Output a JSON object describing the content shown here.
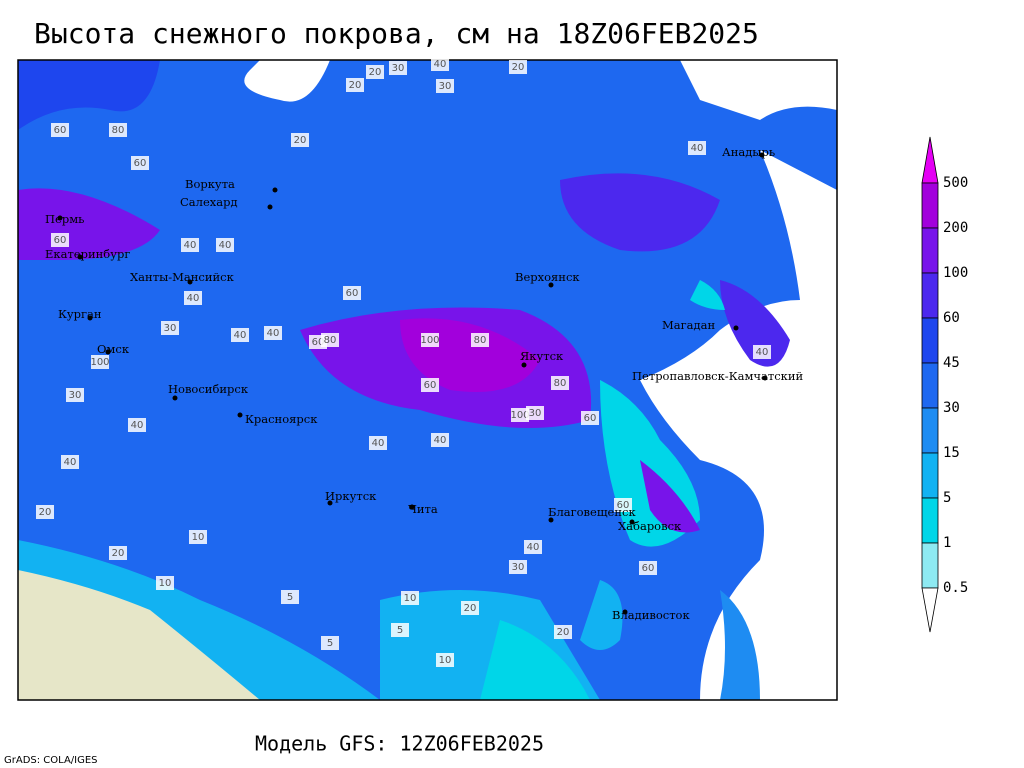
{
  "title": "Высота снежного покрова, см на 18Z06FEB2025",
  "footer": "Модель GFS: 12Z06FEB2025",
  "credit": "GrADS: COLA/IGES",
  "cities": [
    "Воркута",
    "Салехард",
    "Пермь",
    "Екатеринбург",
    "Ханты-Мансийск",
    "Курган",
    "Омск",
    "Новосибирск",
    "Красноярск",
    "Иркутск",
    "Чита",
    "Верхоянск",
    "Якутск",
    "Магадан",
    "Петропавловск-Камчатский",
    "Анадырь",
    "Благовещенск",
    "Хабаровск",
    "Владивосток"
  ],
  "contour_labels": [
    "20",
    "30",
    "40",
    "30",
    "20",
    "20",
    "20",
    "60",
    "80",
    "60",
    "40",
    "60",
    "40",
    "60",
    "40",
    "40",
    "30",
    "40",
    "60",
    "80",
    "100",
    "80",
    "100",
    "60",
    "100",
    "30",
    "80",
    "60",
    "40",
    "40",
    "40",
    "30",
    "40",
    "20",
    "10",
    "20",
    "10",
    "5",
    "5",
    "10",
    "20",
    "40",
    "30",
    "20",
    "10",
    "5",
    "60",
    "40",
    "40",
    "60"
  ],
  "legend": {
    "labels": [
      "500",
      "200",
      "100",
      "60",
      "45",
      "30",
      "15",
      "5",
      "1",
      "0.5"
    ],
    "colors": [
      "#e400f4",
      "#a200dc",
      "#7814ea",
      "#4c28ee",
      "#1e46ee",
      "#1e68f0",
      "#1e8cf2",
      "#12b2f2",
      "#00d6e8",
      "#8eeaf2",
      "#ffffff"
    ]
  }
}
